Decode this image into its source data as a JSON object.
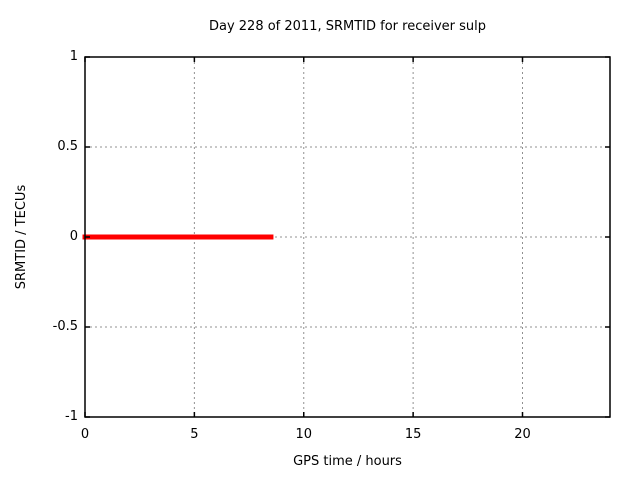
{
  "chart_data": {
    "type": "line",
    "title": "Day 228 of 2011, SRMTID for receiver sulp",
    "xlabel": "GPS time / hours",
    "ylabel": "SRMTID / TECUs",
    "xlim": [
      0,
      24
    ],
    "ylim": [
      -1,
      1
    ],
    "xticks": {
      "values": [
        0,
        5,
        10,
        15,
        20
      ],
      "labels": [
        "0",
        "5",
        "10",
        "15",
        "20"
      ]
    },
    "yticks": {
      "values": [
        -1,
        -0.5,
        0,
        0.5,
        1
      ],
      "labels": [
        "-1",
        "-0.5",
        "0",
        "0.5",
        "1"
      ]
    },
    "grid": "dotted",
    "legend": "none",
    "series": [
      {
        "name": "SRMTID",
        "color": "#ff0000",
        "linewidth": 5,
        "x": [
          0,
          8.5
        ],
        "y": [
          0,
          0
        ]
      }
    ]
  },
  "colors": {
    "background": "#ffffff",
    "axis": "#000000",
    "grid": "#909090",
    "text": "#000000",
    "series_red": "#ff0000"
  }
}
